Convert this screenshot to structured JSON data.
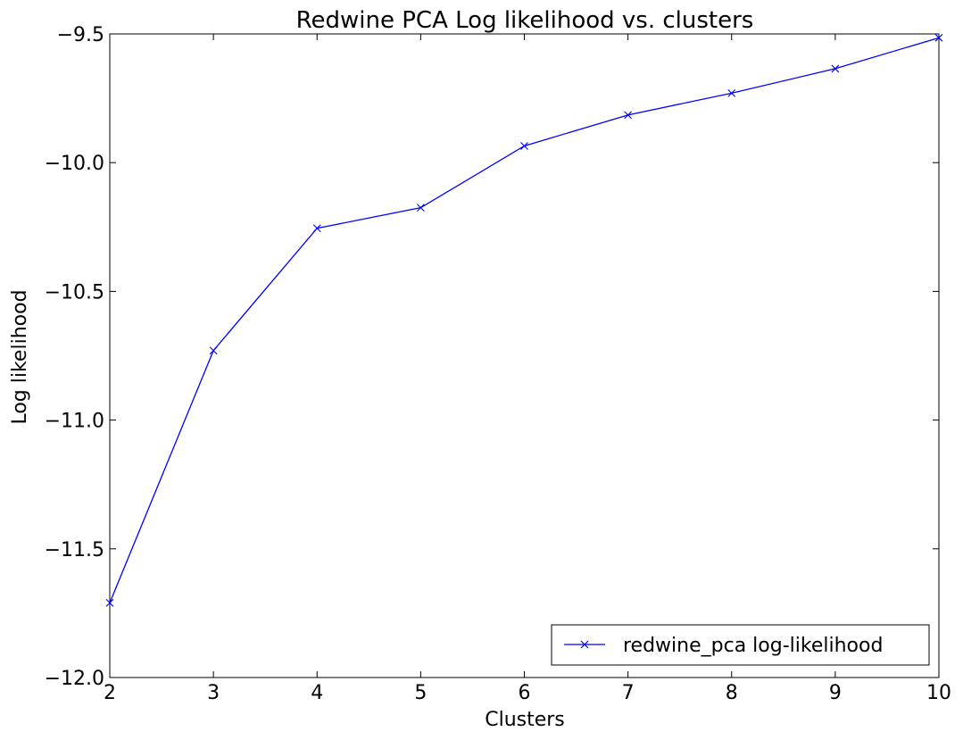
{
  "chart_data": {
    "type": "line",
    "title": "Redwine PCA Log likelihood vs. clusters",
    "xlabel": "Clusters",
    "ylabel": "Log likelihood",
    "xlim": [
      2,
      10
    ],
    "ylim": [
      -12.0,
      -9.5
    ],
    "xticks": [
      "2",
      "3",
      "4",
      "5",
      "6",
      "7",
      "8",
      "9",
      "10"
    ],
    "yticks": [
      "−12.0",
      "−11.5",
      "−11.0",
      "−10.5",
      "−10.0",
      "−9.5"
    ],
    "ytick_values": [
      -12.0,
      -11.5,
      -11.0,
      -10.5,
      -10.0,
      -9.5
    ],
    "xtick_values": [
      2,
      3,
      4,
      5,
      6,
      7,
      8,
      9,
      10
    ],
    "grid": false,
    "legend_position": "lower-right",
    "series": [
      {
        "name": "redwine_pca log-likelihood",
        "color": "#0000ff",
        "marker": "x",
        "x": [
          2,
          3,
          4,
          5,
          6,
          7,
          8,
          9,
          10
        ],
        "y": [
          -11.71,
          -10.73,
          -10.255,
          -10.175,
          -9.935,
          -9.815,
          -9.73,
          -9.635,
          -9.515
        ]
      }
    ]
  }
}
